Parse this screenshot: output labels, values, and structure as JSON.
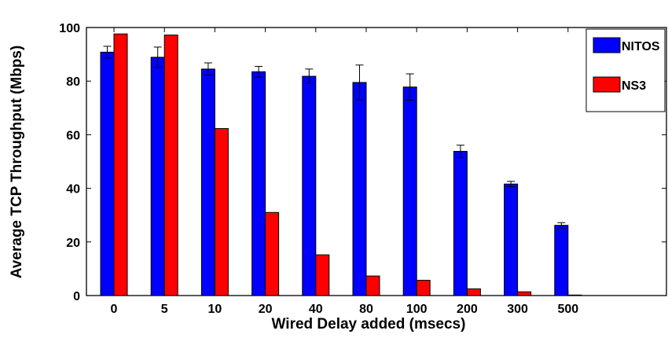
{
  "chart_data": {
    "type": "bar",
    "title": "",
    "xlabel": "Wired Delay added (msecs)",
    "ylabel": "Average TCP Throughput (Mbps)",
    "categories": [
      "0",
      "5",
      "10",
      "20",
      "40",
      "80",
      "100",
      "200",
      "300",
      "500"
    ],
    "ylim": [
      0,
      100
    ],
    "yticks": [
      0,
      20,
      40,
      60,
      80,
      100
    ],
    "grid": false,
    "legend_position": "top-right",
    "series": [
      {
        "name": "NITOS",
        "color": "#0000ff",
        "values": [
          90.8,
          88.9,
          84.5,
          83.5,
          81.8,
          79.5,
          77.8,
          53.8,
          41.6,
          26.2
        ],
        "error": [
          2.2,
          3.8,
          2.3,
          2.0,
          2.7,
          6.5,
          4.9,
          2.3,
          1.0,
          1.0
        ]
      },
      {
        "name": "NS3",
        "color": "#ff0000",
        "values": [
          97.6,
          97.2,
          62.3,
          31.0,
          15.2,
          7.3,
          5.7,
          2.5,
          1.4,
          0.2
        ]
      }
    ]
  }
}
